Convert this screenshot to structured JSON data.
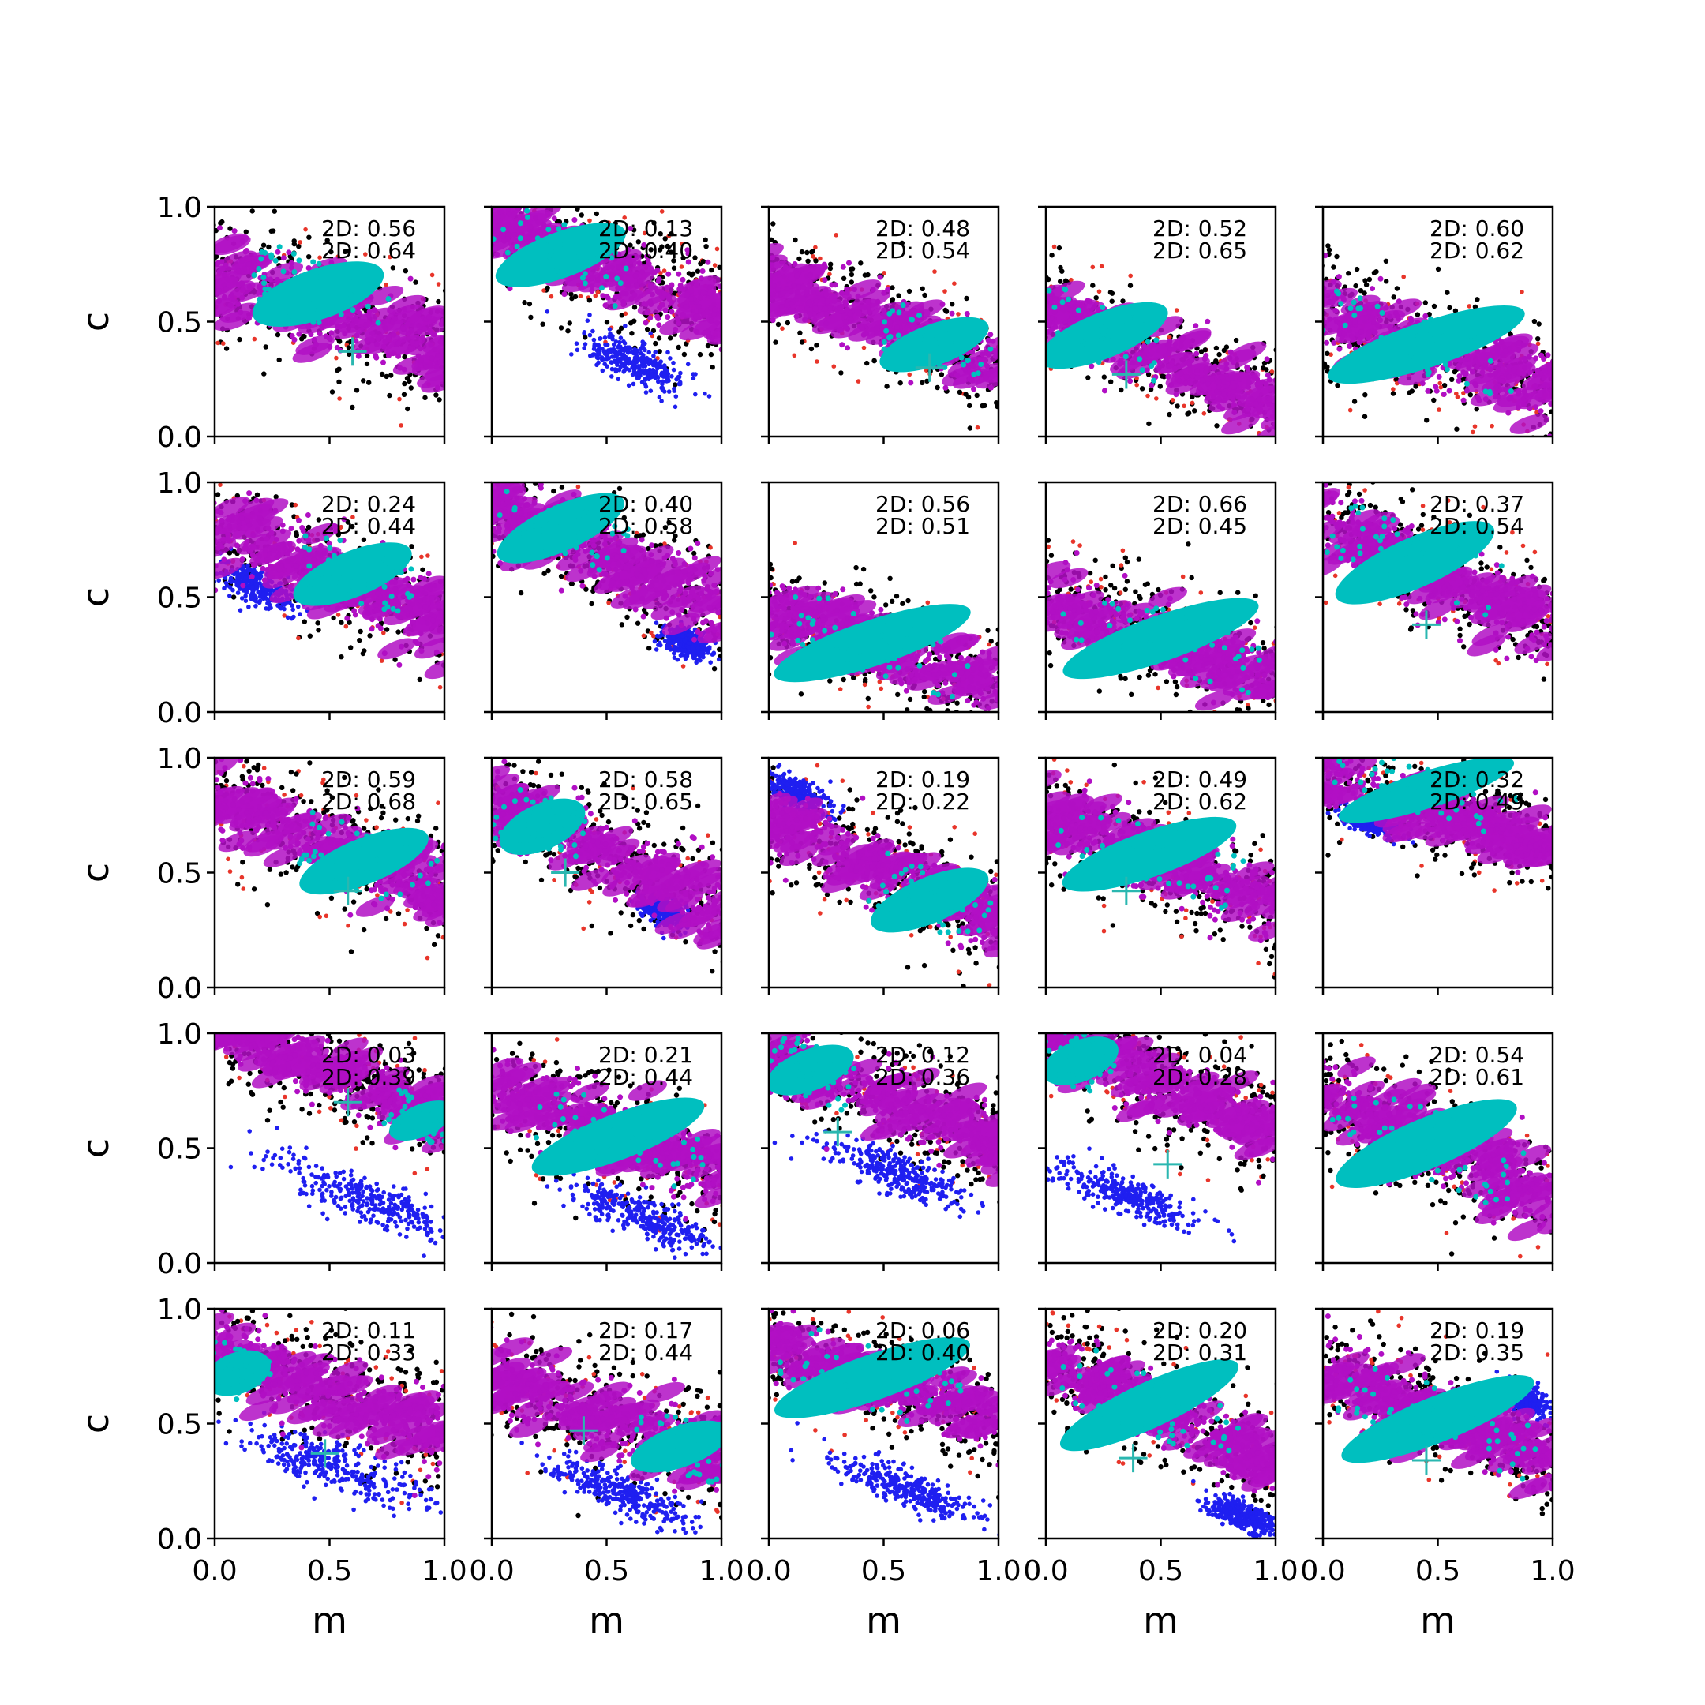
{
  "chart_data": {
    "type": "scatter",
    "layout": "5x5 grid of small-multiple scatter plots",
    "x_label": "m",
    "y_label": "c",
    "xlim": [
      0.0,
      1.0
    ],
    "ylim": [
      0.0,
      1.0
    ],
    "x_ticks": [
      "0.0",
      "0.5",
      "1.0"
    ],
    "y_ticks": [
      "0.0",
      "0.5",
      "1.0"
    ],
    "grid": false,
    "colors": {
      "black_points": "#000000",
      "red_points": "#e8352a",
      "blue_points": "#1f1ff0",
      "magenta_band": "#b10fc4",
      "cyan_core": "#00bfbf",
      "true_value_marker": "#2ab7b0"
    },
    "marker_symbol": "+",
    "panels": [
      {
        "row": 0,
        "col": 0,
        "ann": [
          "2D: 0.56",
          "2D: 0.64"
        ],
        "band": {
          "x": [
            0.0,
            1.0
          ],
          "y": [
            0.72,
            0.38
          ],
          "halfwidth": 0.26
        },
        "core": {
          "cx": 0.45,
          "cy": 0.62,
          "len": 0.6,
          "hw": 0.11
        },
        "blue": null,
        "marker": [
          0.6,
          0.37
        ]
      },
      {
        "row": 0,
        "col": 1,
        "ann": [
          "2D: 0.13",
          "2D: 0.40"
        ],
        "band": {
          "x": [
            0.0,
            1.0
          ],
          "y": [
            0.92,
            0.55
          ],
          "halfwidth": 0.24
        },
        "core": {
          "cx": 0.3,
          "cy": 0.79,
          "len": 0.6,
          "hw": 0.1
        },
        "blue": {
          "cx": 0.62,
          "cy": 0.32,
          "len": 0.45,
          "hw": 0.07,
          "slope": -0.45
        },
        "marker": null
      },
      {
        "row": 0,
        "col": 2,
        "ann": [
          "2D: 0.48",
          "2D: 0.54"
        ],
        "band": {
          "x": [
            0.0,
            1.0
          ],
          "y": [
            0.67,
            0.31
          ],
          "halfwidth": 0.2
        },
        "core": {
          "cx": 0.72,
          "cy": 0.4,
          "len": 0.5,
          "hw": 0.09
        },
        "blue": null,
        "marker": [
          0.7,
          0.3
        ]
      },
      {
        "row": 0,
        "col": 3,
        "ann": [
          "2D: 0.52",
          "2D: 0.65"
        ],
        "band": {
          "x": [
            0.0,
            1.0
          ],
          "y": [
            0.55,
            0.15
          ],
          "halfwidth": 0.2
        },
        "core": {
          "cx": 0.25,
          "cy": 0.44,
          "len": 0.6,
          "hw": 0.1
        },
        "blue": null,
        "marker": [
          0.35,
          0.27
        ]
      },
      {
        "row": 0,
        "col": 4,
        "ann": [
          "2D: 0.60",
          "2D: 0.62"
        ],
        "band": {
          "x": [
            0.0,
            1.0
          ],
          "y": [
            0.53,
            0.2
          ],
          "halfwidth": 0.24
        },
        "core": {
          "cx": 0.45,
          "cy": 0.4,
          "len": 0.9,
          "hw": 0.1
        },
        "blue": null,
        "marker": null
      },
      {
        "row": 1,
        "col": 0,
        "ann": [
          "2D: 0.24",
          "2D: 0.44"
        ],
        "band": {
          "x": [
            0.0,
            1.0
          ],
          "y": [
            0.8,
            0.4
          ],
          "halfwidth": 0.24
        },
        "core": {
          "cx": 0.6,
          "cy": 0.6,
          "len": 0.55,
          "hw": 0.1
        },
        "blue": {
          "cx": 0.18,
          "cy": 0.55,
          "len": 0.35,
          "hw": 0.06,
          "slope": -0.45
        },
        "marker": null
      },
      {
        "row": 1,
        "col": 1,
        "ann": [
          "2D: 0.40",
          "2D: 0.58"
        ],
        "band": {
          "x": [
            0.0,
            1.0
          ],
          "y": [
            0.9,
            0.45
          ],
          "halfwidth": 0.24
        },
        "core": {
          "cx": 0.3,
          "cy": 0.8,
          "len": 0.6,
          "hw": 0.1
        },
        "blue": {
          "cx": 0.85,
          "cy": 0.3,
          "len": 0.2,
          "hw": 0.05,
          "slope": -0.45
        },
        "marker": null
      },
      {
        "row": 1,
        "col": 2,
        "ann": [
          "2D: 0.56",
          "2D: 0.51"
        ],
        "band": {
          "x": [
            0.0,
            1.0
          ],
          "y": [
            0.45,
            0.12
          ],
          "halfwidth": 0.22
        },
        "core": {
          "cx": 0.45,
          "cy": 0.3,
          "len": 0.9,
          "hw": 0.1
        },
        "blue": null,
        "marker": null
      },
      {
        "row": 1,
        "col": 3,
        "ann": [
          "2D: 0.66",
          "2D: 0.45"
        ],
        "band": {
          "x": [
            0.0,
            1.0
          ],
          "y": [
            0.5,
            0.15
          ],
          "halfwidth": 0.22
        },
        "core": {
          "cx": 0.5,
          "cy": 0.32,
          "len": 0.9,
          "hw": 0.1
        },
        "blue": null,
        "marker": null
      },
      {
        "row": 1,
        "col": 4,
        "ann": [
          "2D: 0.37",
          "2D: 0.54"
        ],
        "band": {
          "x": [
            0.0,
            1.0
          ],
          "y": [
            0.82,
            0.38
          ],
          "halfwidth": 0.24
        },
        "core": {
          "cx": 0.4,
          "cy": 0.65,
          "len": 0.75,
          "hw": 0.11
        },
        "blue": null,
        "marker": [
          0.45,
          0.38
        ]
      },
      {
        "row": 2,
        "col": 0,
        "ann": [
          "2D: 0.59",
          "2D: 0.68"
        ],
        "band": {
          "x": [
            0.0,
            1.0
          ],
          "y": [
            0.82,
            0.42
          ],
          "halfwidth": 0.24
        },
        "core": {
          "cx": 0.65,
          "cy": 0.55,
          "len": 0.6,
          "hw": 0.1
        },
        "blue": null,
        "marker": [
          0.58,
          0.42
        ]
      },
      {
        "row": 2,
        "col": 1,
        "ann": [
          "2D: 0.58",
          "2D: 0.65"
        ],
        "band": {
          "x": [
            0.0,
            1.0
          ],
          "y": [
            0.8,
            0.35
          ],
          "halfwidth": 0.24
        },
        "core": {
          "cx": 0.22,
          "cy": 0.7,
          "len": 0.4,
          "hw": 0.1
        },
        "blue": {
          "cx": 0.75,
          "cy": 0.33,
          "len": 0.2,
          "hw": 0.05,
          "slope": -0.45
        },
        "marker": [
          0.32,
          0.5
        ]
      },
      {
        "row": 2,
        "col": 2,
        "ann": [
          "2D: 0.19",
          "2D: 0.22"
        ],
        "band": {
          "x": [
            0.0,
            1.0
          ],
          "y": [
            0.72,
            0.3
          ],
          "halfwidth": 0.22
        },
        "core": {
          "cx": 0.7,
          "cy": 0.38,
          "len": 0.55,
          "hw": 0.1
        },
        "blue": {
          "cx": 0.12,
          "cy": 0.85,
          "len": 0.3,
          "hw": 0.05,
          "slope": -0.45
        },
        "marker": null
      },
      {
        "row": 2,
        "col": 3,
        "ann": [
          "2D: 0.49",
          "2D: 0.62"
        ],
        "band": {
          "x": [
            0.0,
            1.0
          ],
          "y": [
            0.72,
            0.37
          ],
          "halfwidth": 0.22
        },
        "core": {
          "cx": 0.45,
          "cy": 0.58,
          "len": 0.8,
          "hw": 0.1
        },
        "blue": null,
        "marker": [
          0.35,
          0.42
        ]
      },
      {
        "row": 2,
        "col": 4,
        "ann": [
          "2D: 0.32",
          "2D: 0.49"
        ],
        "band": {
          "x": [
            0.0,
            1.0
          ],
          "y": [
            0.92,
            0.6
          ],
          "halfwidth": 0.18
        },
        "core": {
          "cx": 0.45,
          "cy": 0.86,
          "len": 0.8,
          "hw": 0.08
        },
        "blue": {
          "cx": 0.2,
          "cy": 0.72,
          "len": 0.25,
          "hw": 0.04,
          "slope": -0.35
        },
        "marker": null
      },
      {
        "row": 3,
        "col": 0,
        "ann": [
          "2D: 0.03",
          "2D: 0.39"
        ],
        "band": {
          "x": [
            0.0,
            1.0
          ],
          "y": [
            1.05,
            0.62
          ],
          "halfwidth": 0.2
        },
        "core": {
          "cx": 0.9,
          "cy": 0.62,
          "len": 0.3,
          "hw": 0.07
        },
        "blue": {
          "cx": 0.65,
          "cy": 0.28,
          "len": 0.8,
          "hw": 0.08,
          "slope": -0.4
        },
        "marker": [
          0.58,
          0.7
        ]
      },
      {
        "row": 3,
        "col": 1,
        "ann": [
          "2D: 0.21",
          "2D: 0.44"
        ],
        "band": {
          "x": [
            0.0,
            1.0
          ],
          "y": [
            0.76,
            0.38
          ],
          "halfwidth": 0.24
        },
        "core": {
          "cx": 0.55,
          "cy": 0.55,
          "len": 0.8,
          "hw": 0.1
        },
        "blue": {
          "cx": 0.65,
          "cy": 0.2,
          "len": 0.55,
          "hw": 0.07,
          "slope": -0.4
        },
        "marker": null
      },
      {
        "row": 3,
        "col": 2,
        "ann": [
          "2D: 0.12",
          "2D: 0.36"
        ],
        "band": {
          "x": [
            0.0,
            1.0
          ],
          "y": [
            0.9,
            0.52
          ],
          "halfwidth": 0.22
        },
        "core": {
          "cx": 0.18,
          "cy": 0.84,
          "len": 0.4,
          "hw": 0.09
        },
        "blue": {
          "cx": 0.55,
          "cy": 0.4,
          "len": 0.55,
          "hw": 0.07,
          "slope": -0.4
        },
        "marker": [
          0.3,
          0.57
        ]
      },
      {
        "row": 3,
        "col": 3,
        "ann": [
          "2D: 0.04",
          "2D: 0.28"
        ],
        "band": {
          "x": [
            0.0,
            1.0
          ],
          "y": [
            0.98,
            0.58
          ],
          "halfwidth": 0.24
        },
        "core": {
          "cx": 0.15,
          "cy": 0.88,
          "len": 0.35,
          "hw": 0.09
        },
        "blue": {
          "cx": 0.35,
          "cy": 0.3,
          "len": 0.6,
          "hw": 0.07,
          "slope": -0.4
        },
        "marker": [
          0.53,
          0.43
        ]
      },
      {
        "row": 3,
        "col": 4,
        "ann": [
          "2D: 0.54",
          "2D: 0.61"
        ],
        "band": {
          "x": [
            0.0,
            1.0
          ],
          "y": [
            0.72,
            0.3
          ],
          "halfwidth": 0.24
        },
        "core": {
          "cx": 0.45,
          "cy": 0.52,
          "len": 0.85,
          "hw": 0.11
        },
        "blue": null,
        "marker": null
      },
      {
        "row": 4,
        "col": 0,
        "ann": [
          "2D: 0.11",
          "2D: 0.33"
        ],
        "band": {
          "x": [
            0.0,
            1.0
          ],
          "y": [
            0.82,
            0.45
          ],
          "halfwidth": 0.24
        },
        "core": {
          "cx": 0.1,
          "cy": 0.72,
          "len": 0.3,
          "hw": 0.09
        },
        "blue": {
          "cx": 0.5,
          "cy": 0.32,
          "len": 0.75,
          "hw": 0.08,
          "slope": -0.4
        },
        "marker": [
          0.48,
          0.37
        ]
      },
      {
        "row": 4,
        "col": 1,
        "ann": [
          "2D: 0.17",
          "2D: 0.44"
        ],
        "band": {
          "x": [
            0.0,
            1.0
          ],
          "y": [
            0.7,
            0.35
          ],
          "halfwidth": 0.24
        },
        "core": {
          "cx": 0.82,
          "cy": 0.4,
          "len": 0.45,
          "hw": 0.09
        },
        "blue": {
          "cx": 0.55,
          "cy": 0.2,
          "len": 0.6,
          "hw": 0.07,
          "slope": -0.4
        },
        "marker": [
          0.4,
          0.47
        ]
      },
      {
        "row": 4,
        "col": 2,
        "ann": [
          "2D: 0.06",
          "2D: 0.40"
        ],
        "band": {
          "x": [
            0.0,
            1.0
          ],
          "y": [
            0.85,
            0.5
          ],
          "halfwidth": 0.2
        },
        "core": {
          "cx": 0.45,
          "cy": 0.7,
          "len": 0.9,
          "hw": 0.1
        },
        "blue": {
          "cx": 0.6,
          "cy": 0.22,
          "len": 0.6,
          "hw": 0.07,
          "slope": -0.4
        },
        "marker": null
      },
      {
        "row": 4,
        "col": 3,
        "ann": [
          "2D: 0.20",
          "2D: 0.31"
        ],
        "band": {
          "x": [
            0.0,
            1.0
          ],
          "y": [
            0.78,
            0.32
          ],
          "halfwidth": 0.22
        },
        "core": {
          "cx": 0.45,
          "cy": 0.58,
          "len": 0.85,
          "hw": 0.1
        },
        "blue": {
          "cx": 0.85,
          "cy": 0.1,
          "len": 0.3,
          "hw": 0.05,
          "slope": -0.4
        },
        "marker": [
          0.38,
          0.35
        ]
      },
      {
        "row": 4,
        "col": 4,
        "ann": [
          "2D: 0.19",
          "2D: 0.35"
        ],
        "band": {
          "x": [
            0.0,
            1.0
          ],
          "y": [
            0.75,
            0.35
          ],
          "halfwidth": 0.22
        },
        "core": {
          "cx": 0.5,
          "cy": 0.52,
          "len": 0.9,
          "hw": 0.1
        },
        "blue": {
          "cx": 0.88,
          "cy": 0.6,
          "len": 0.2,
          "hw": 0.05,
          "slope": -0.4
        },
        "marker": [
          0.45,
          0.34
        ]
      }
    ]
  }
}
